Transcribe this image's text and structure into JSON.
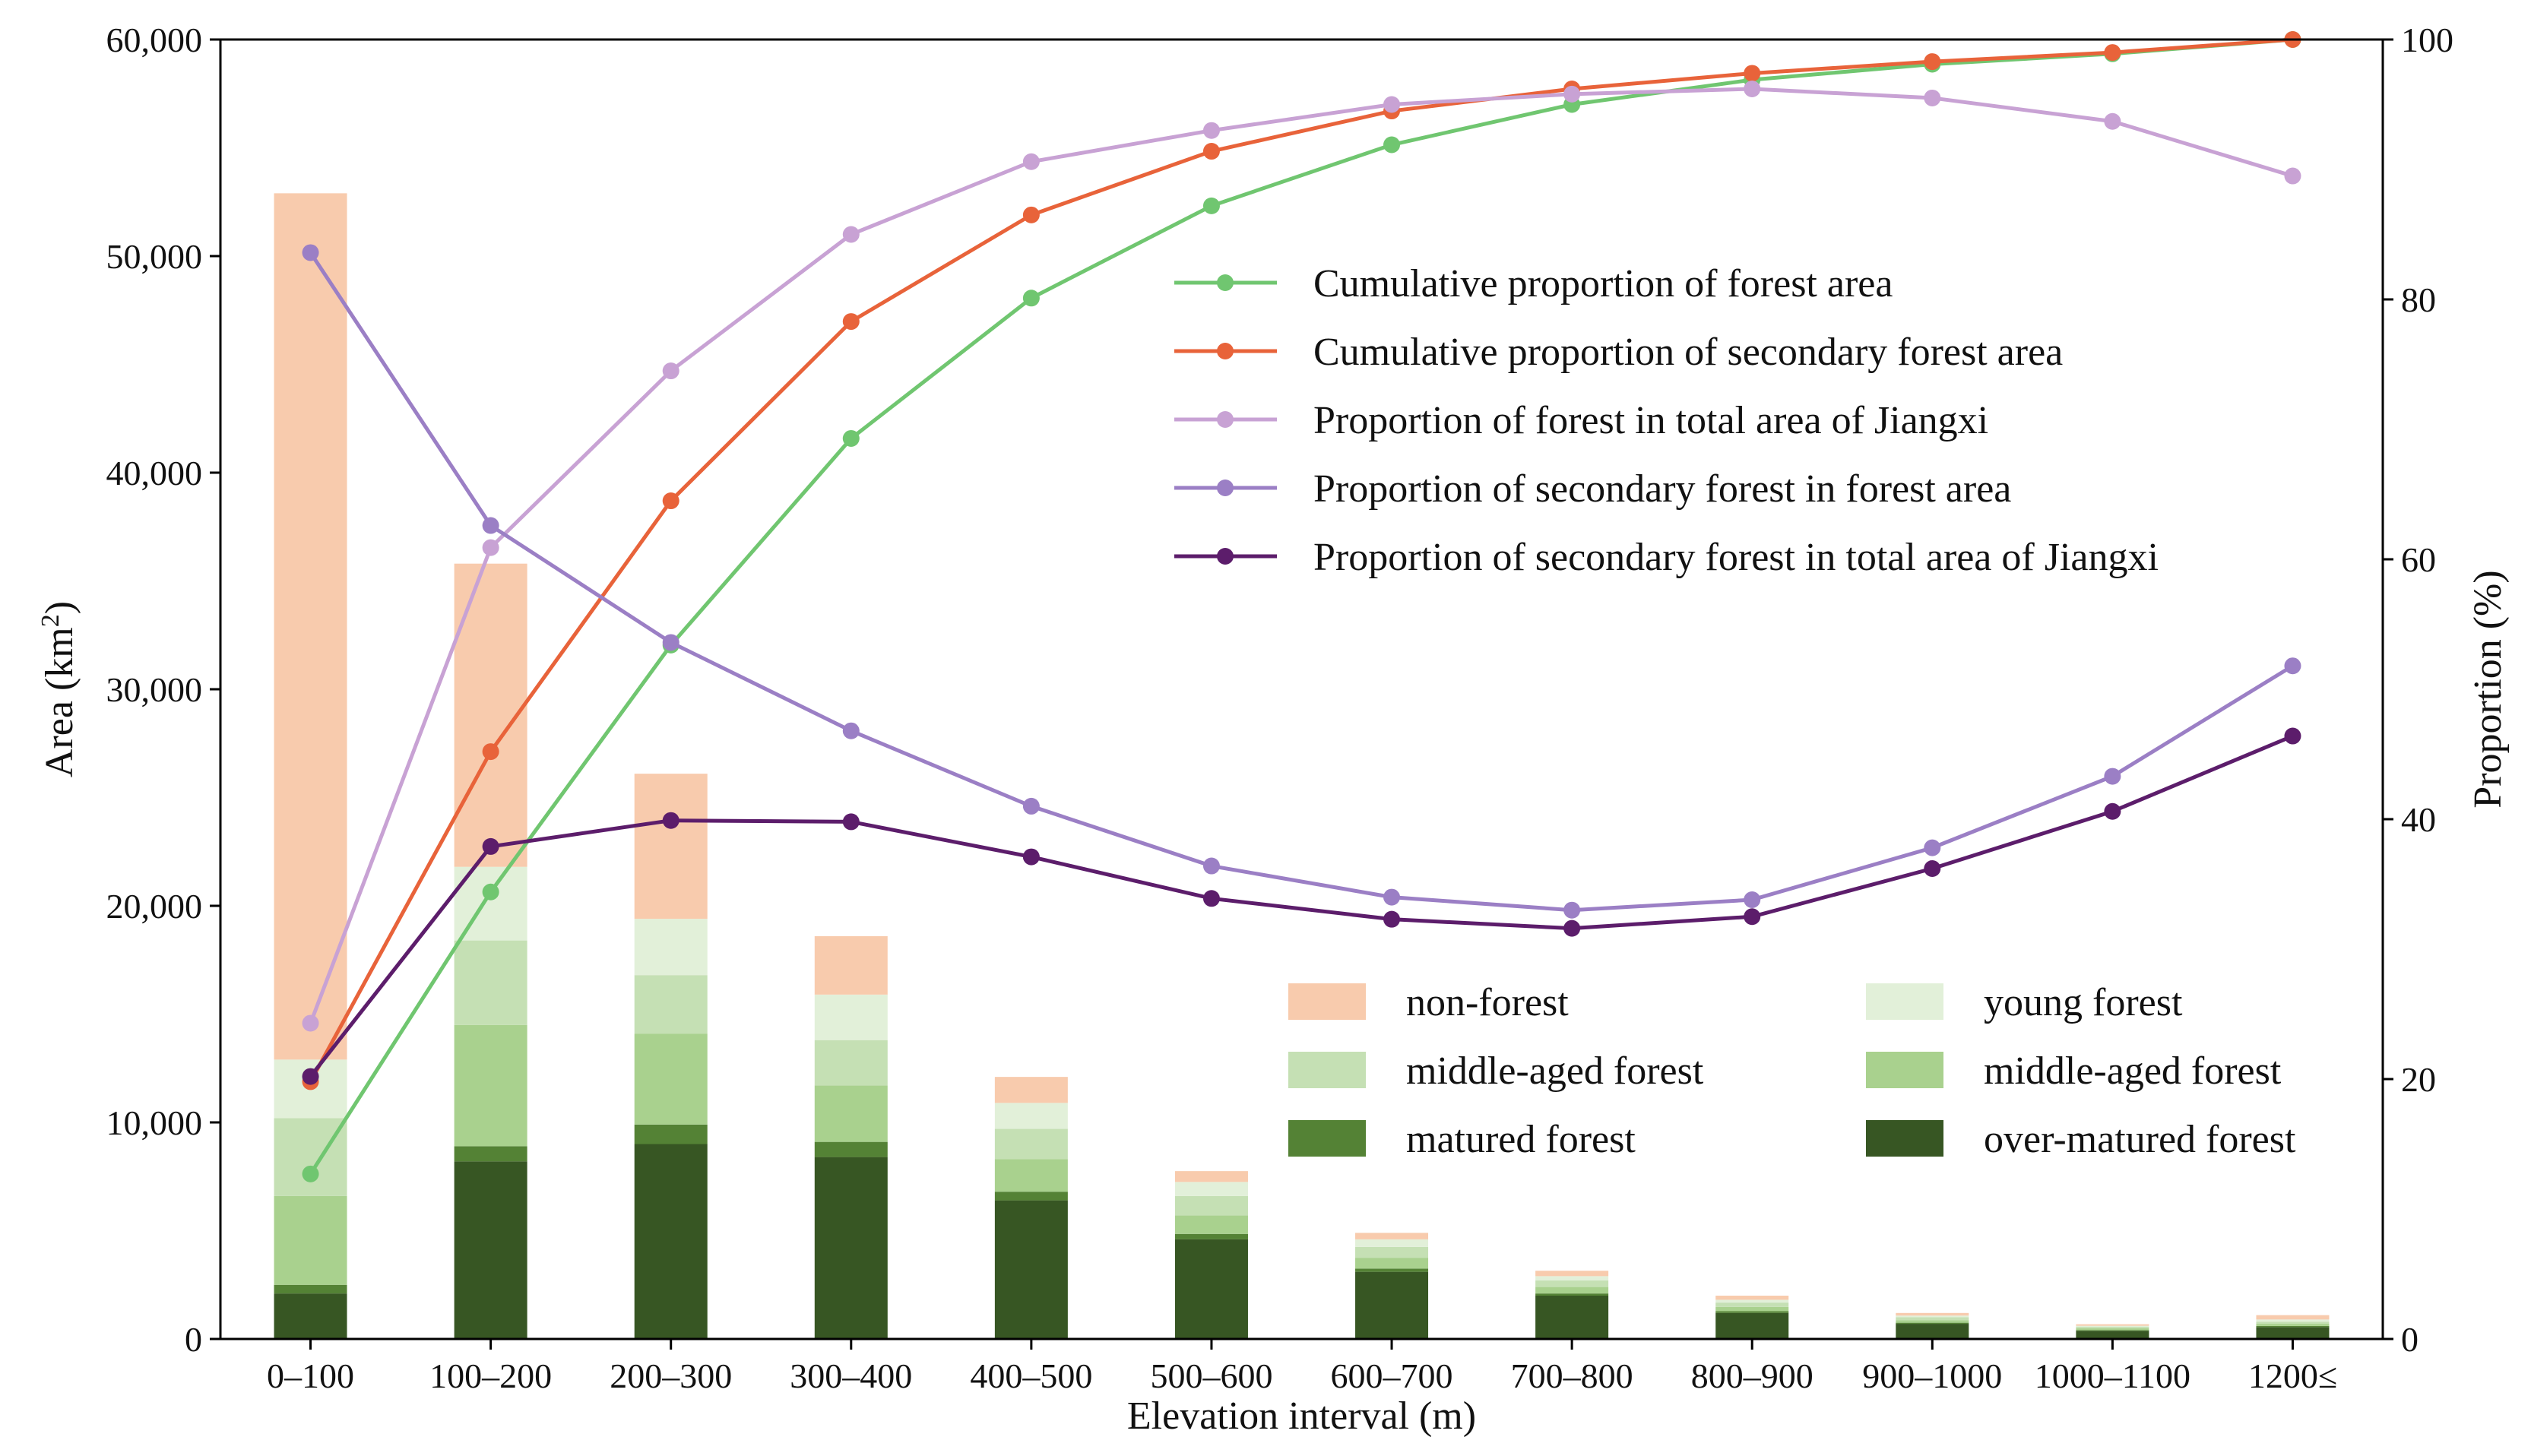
{
  "chart_data": {
    "type": "bar+line",
    "xlabel": "Elevation interval (m)",
    "ylabel_left": "Area (km",
    "ylabel_left_sup": "2",
    "ylabel_left_close": ")",
    "ylabel_right": "Proportion (%)",
    "ylim_left": [
      0,
      60000
    ],
    "ylim_right": [
      0,
      100
    ],
    "yticks_left": [
      0,
      10000,
      20000,
      30000,
      40000,
      50000,
      60000
    ],
    "yticks_left_labels": [
      "0",
      "10,000",
      "20,000",
      "30,000",
      "40,000",
      "50,000",
      "60,000"
    ],
    "yticks_right": [
      0,
      20,
      40,
      60,
      80,
      100
    ],
    "yticks_right_labels": [
      "0",
      "20",
      "40",
      "60",
      "80",
      "100"
    ],
    "categories": [
      "0–100",
      "100–200",
      "200–300",
      "300–400",
      "400–500",
      "500–600",
      "600–700",
      "700–800",
      "800–900",
      "900–1000",
      "1000–1100",
      "1200≤"
    ],
    "bar_series": [
      {
        "name": "over-matured forest",
        "color": "#375623",
        "values": [
          2100,
          8200,
          9000,
          8400,
          6400,
          4600,
          3100,
          2000,
          1200,
          700,
          380,
          550
        ]
      },
      {
        "name": "matured forest",
        "color": "#548235",
        "values": [
          400,
          700,
          900,
          700,
          400,
          250,
          150,
          100,
          80,
          50,
          30,
          50
        ]
      },
      {
        "name": "middle-aged forest",
        "color": "#a9d18e",
        "values": [
          4100,
          5600,
          4200,
          2600,
          1500,
          850,
          500,
          300,
          200,
          120,
          80,
          100
        ]
      },
      {
        "name": "middle-aged forest",
        "color": "#c5e0b4",
        "values": [
          3600,
          3900,
          2700,
          2100,
          1400,
          900,
          500,
          300,
          200,
          130,
          70,
          100
        ]
      },
      {
        "name": "young forest",
        "color": "#e2f0d9",
        "values": [
          2700,
          3400,
          2600,
          2100,
          1200,
          650,
          350,
          200,
          130,
          80,
          50,
          100
        ]
      },
      {
        "name": "non-forest",
        "color": "#f8cbad",
        "values": [
          40000,
          14000,
          6700,
          2700,
          1200,
          500,
          300,
          250,
          190,
          120,
          70,
          200
        ]
      }
    ],
    "line_series": [
      {
        "name": "Cumulative proportion of forest area",
        "color": "#70c670",
        "values": [
          12.7,
          34.4,
          53.4,
          69.3,
          80.1,
          87.2,
          91.9,
          95.0,
          96.9,
          98.1,
          98.9,
          100.0
        ]
      },
      {
        "name": "Cumulative proportion of secondary forest area",
        "color": "#e8633a",
        "values": [
          19.8,
          45.2,
          64.5,
          78.3,
          86.5,
          91.4,
          94.5,
          96.2,
          97.4,
          98.3,
          99.0,
          100.0
        ]
      },
      {
        "name": "Proportion of forest in total area of Jiangxi",
        "color": "#c8a2d4",
        "values": [
          24.3,
          60.9,
          74.5,
          85.0,
          90.6,
          93.0,
          95.0,
          95.8,
          96.2,
          95.5,
          93.7,
          89.5
        ]
      },
      {
        "name": "Proportion of secondary forest in forest area",
        "color": "#9b7fc5",
        "values": [
          83.6,
          62.6,
          53.6,
          46.8,
          41.0,
          36.4,
          34.0,
          33.0,
          33.8,
          37.8,
          43.3,
          51.8
        ]
      },
      {
        "name": "Proportion of secondary forest in total area of Jiangxi",
        "color": "#5c1d6b",
        "values": [
          20.2,
          37.9,
          39.9,
          39.8,
          37.1,
          33.9,
          32.3,
          31.6,
          32.5,
          36.2,
          40.6,
          46.4
        ]
      }
    ],
    "bar_legend": [
      {
        "name": "non-forest",
        "color": "#f8cbad"
      },
      {
        "name": "young forest",
        "color": "#e2f0d9"
      },
      {
        "name": "middle-aged forest",
        "color": "#c5e0b4"
      },
      {
        "name": "middle-aged forest",
        "color": "#a9d18e"
      },
      {
        "name": "matured forest",
        "color": "#548235"
      },
      {
        "name": "over-matured forest",
        "color": "#375623"
      }
    ]
  }
}
